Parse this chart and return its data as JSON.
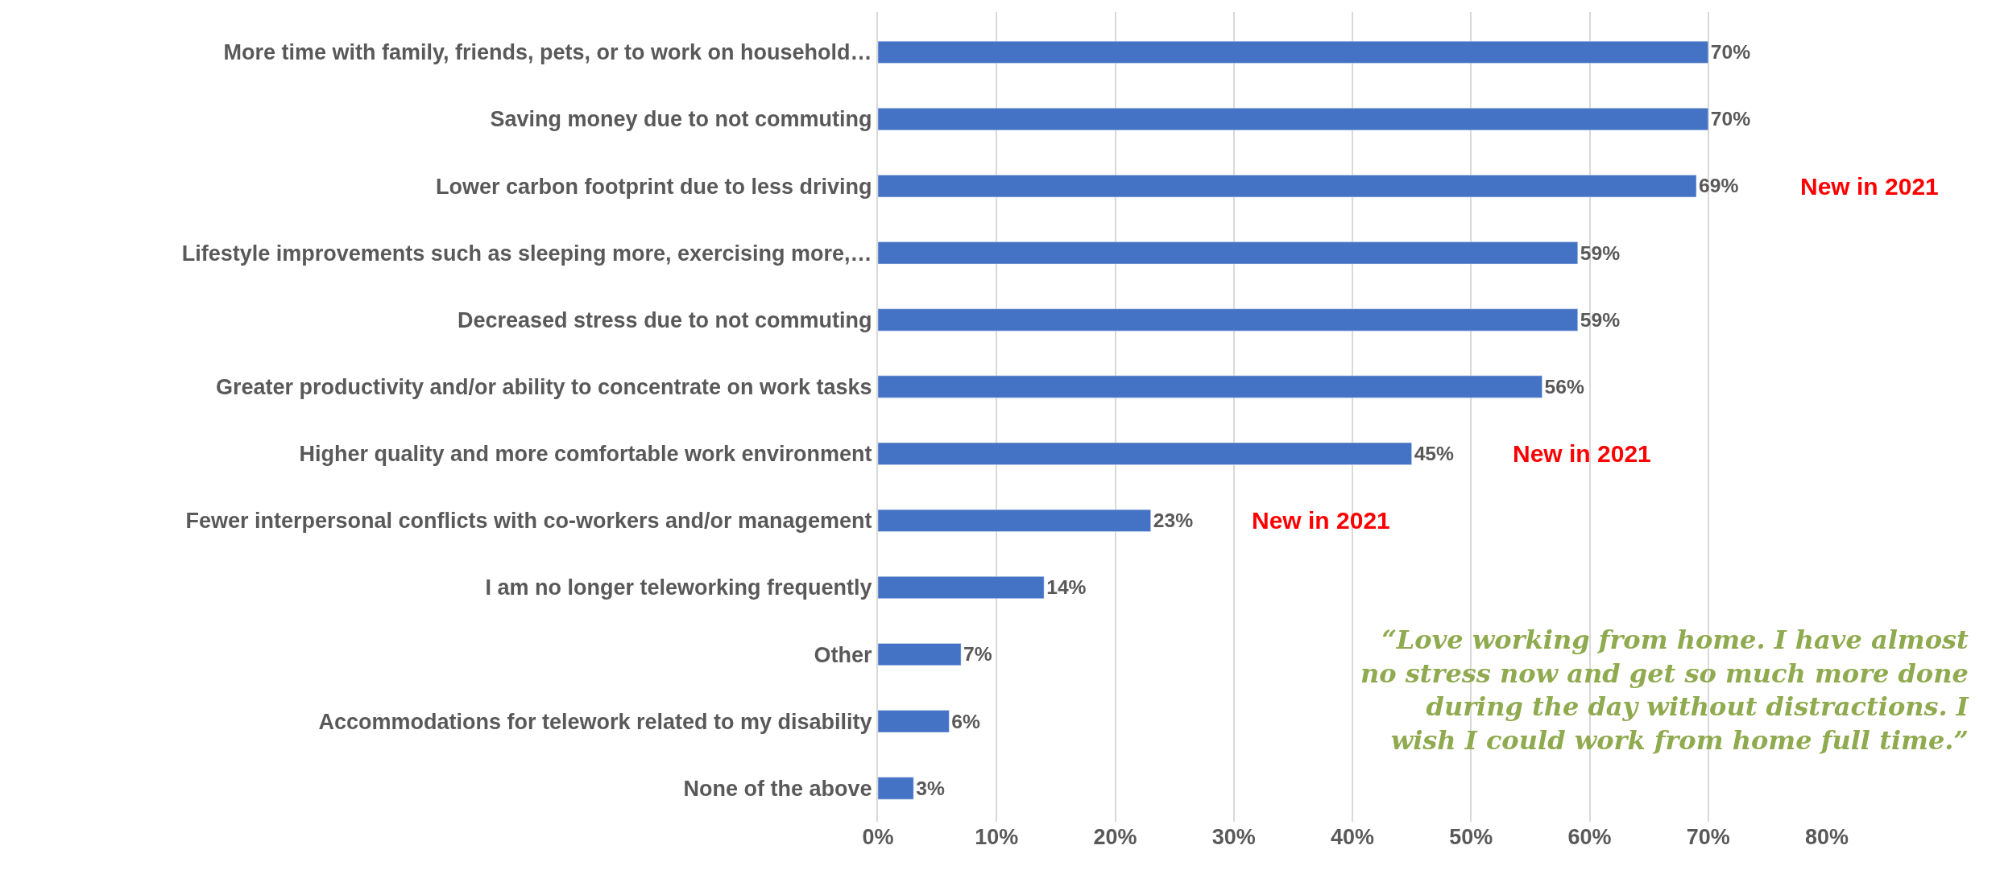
{
  "chart_data": {
    "type": "bar",
    "orientation": "horizontal",
    "categories": [
      "More time with family, friends, pets, or to work on household…",
      "Saving money due to not commuting",
      "Lower carbon footprint due to less driving",
      "Lifestyle improvements such as sleeping more, exercising more,…",
      "Decreased stress due to not commuting",
      "Greater productivity and/or ability to concentrate on work tasks",
      "Higher quality and more comfortable work environment",
      "Fewer interpersonal conflicts with co-workers and/or management",
      "I am no longer teleworking frequently",
      "Other",
      "Accommodations for telework related to my disability",
      "None of the above"
    ],
    "values": [
      70,
      70,
      69,
      59,
      59,
      56,
      45,
      23,
      14,
      7,
      6,
      3
    ],
    "value_labels": [
      "70%",
      "70%",
      "69%",
      "59%",
      "59%",
      "56%",
      "45%",
      "23%",
      "14%",
      "7%",
      "6%",
      "3%"
    ],
    "color": "#4472c4",
    "xlim": [
      0,
      80
    ],
    "xticks": [
      {
        "value": 0,
        "label": "0%"
      },
      {
        "value": 10,
        "label": "10%"
      },
      {
        "value": 20,
        "label": "20%"
      },
      {
        "value": 30,
        "label": "30%"
      },
      {
        "value": 40,
        "label": "40%"
      },
      {
        "value": 50,
        "label": "50%"
      },
      {
        "value": 60,
        "label": "60%"
      },
      {
        "value": 70,
        "label": "70%"
      },
      {
        "value": 80,
        "label": "80%"
      }
    ],
    "grid": "x",
    "annotations": [
      "New in 2021",
      "New in 2021",
      "New in 2021",
      "“Love working from home. I have almost no stress now and get so much more done during the day without distractions. I wish I could work from home full time.”"
    ]
  }
}
